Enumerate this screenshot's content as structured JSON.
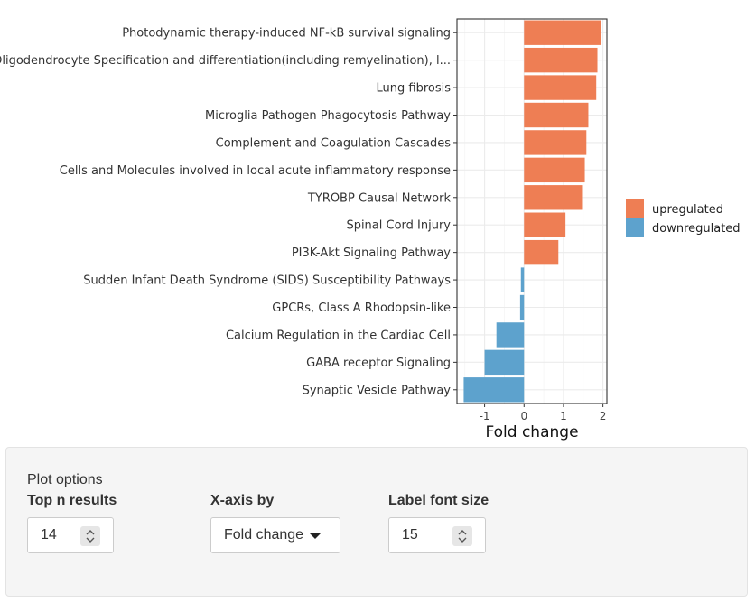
{
  "chart_data": {
    "type": "bar",
    "orientation": "horizontal",
    "categories": [
      "Photodynamic therapy-induced NF-kB survival signaling",
      "Oligodendrocyte Specification and differentiation(including remyelination), l...",
      "Lung fibrosis",
      "Microglia Pathogen Phagocytosis Pathway",
      "Complement and Coagulation Cascades",
      "Cells and Molecules involved in local acute inflammatory response",
      "TYROBP Causal Network",
      "Spinal Cord Injury",
      "PI3K-Akt Signaling Pathway",
      "Sudden Infant Death Syndrome (SIDS) Susceptibility Pathways",
      "GPCRs, Class A Rhodopsin-like",
      "Calcium Regulation in the Cardiac Cell",
      "GABA receptor Signaling",
      "Synaptic Vesicle Pathway"
    ],
    "values": [
      1.95,
      1.86,
      1.83,
      1.63,
      1.58,
      1.54,
      1.47,
      1.05,
      0.87,
      -0.08,
      -0.1,
      -0.7,
      -1.0,
      -1.53
    ],
    "groups": [
      "upregulated",
      "upregulated",
      "upregulated",
      "upregulated",
      "upregulated",
      "upregulated",
      "upregulated",
      "upregulated",
      "upregulated",
      "downregulated",
      "downregulated",
      "downregulated",
      "downregulated",
      "downregulated"
    ],
    "xlabel": "Fold change",
    "xlim": [
      -1.7,
      2.1
    ],
    "xticks": [
      -1,
      0,
      1,
      2
    ],
    "grid": true,
    "legend": {
      "placement": "right",
      "entries": [
        {
          "label": "upregulated",
          "color": "#EE7E54"
        },
        {
          "label": "downregulated",
          "color": "#5DA2CD"
        }
      ]
    }
  },
  "options": {
    "title": "Plot options",
    "top_n": {
      "label": "Top n results",
      "value": "14"
    },
    "xaxis": {
      "label": "X-axis by",
      "value": "Fold change"
    },
    "font_size": {
      "label": "Label font size",
      "value": "15"
    }
  }
}
